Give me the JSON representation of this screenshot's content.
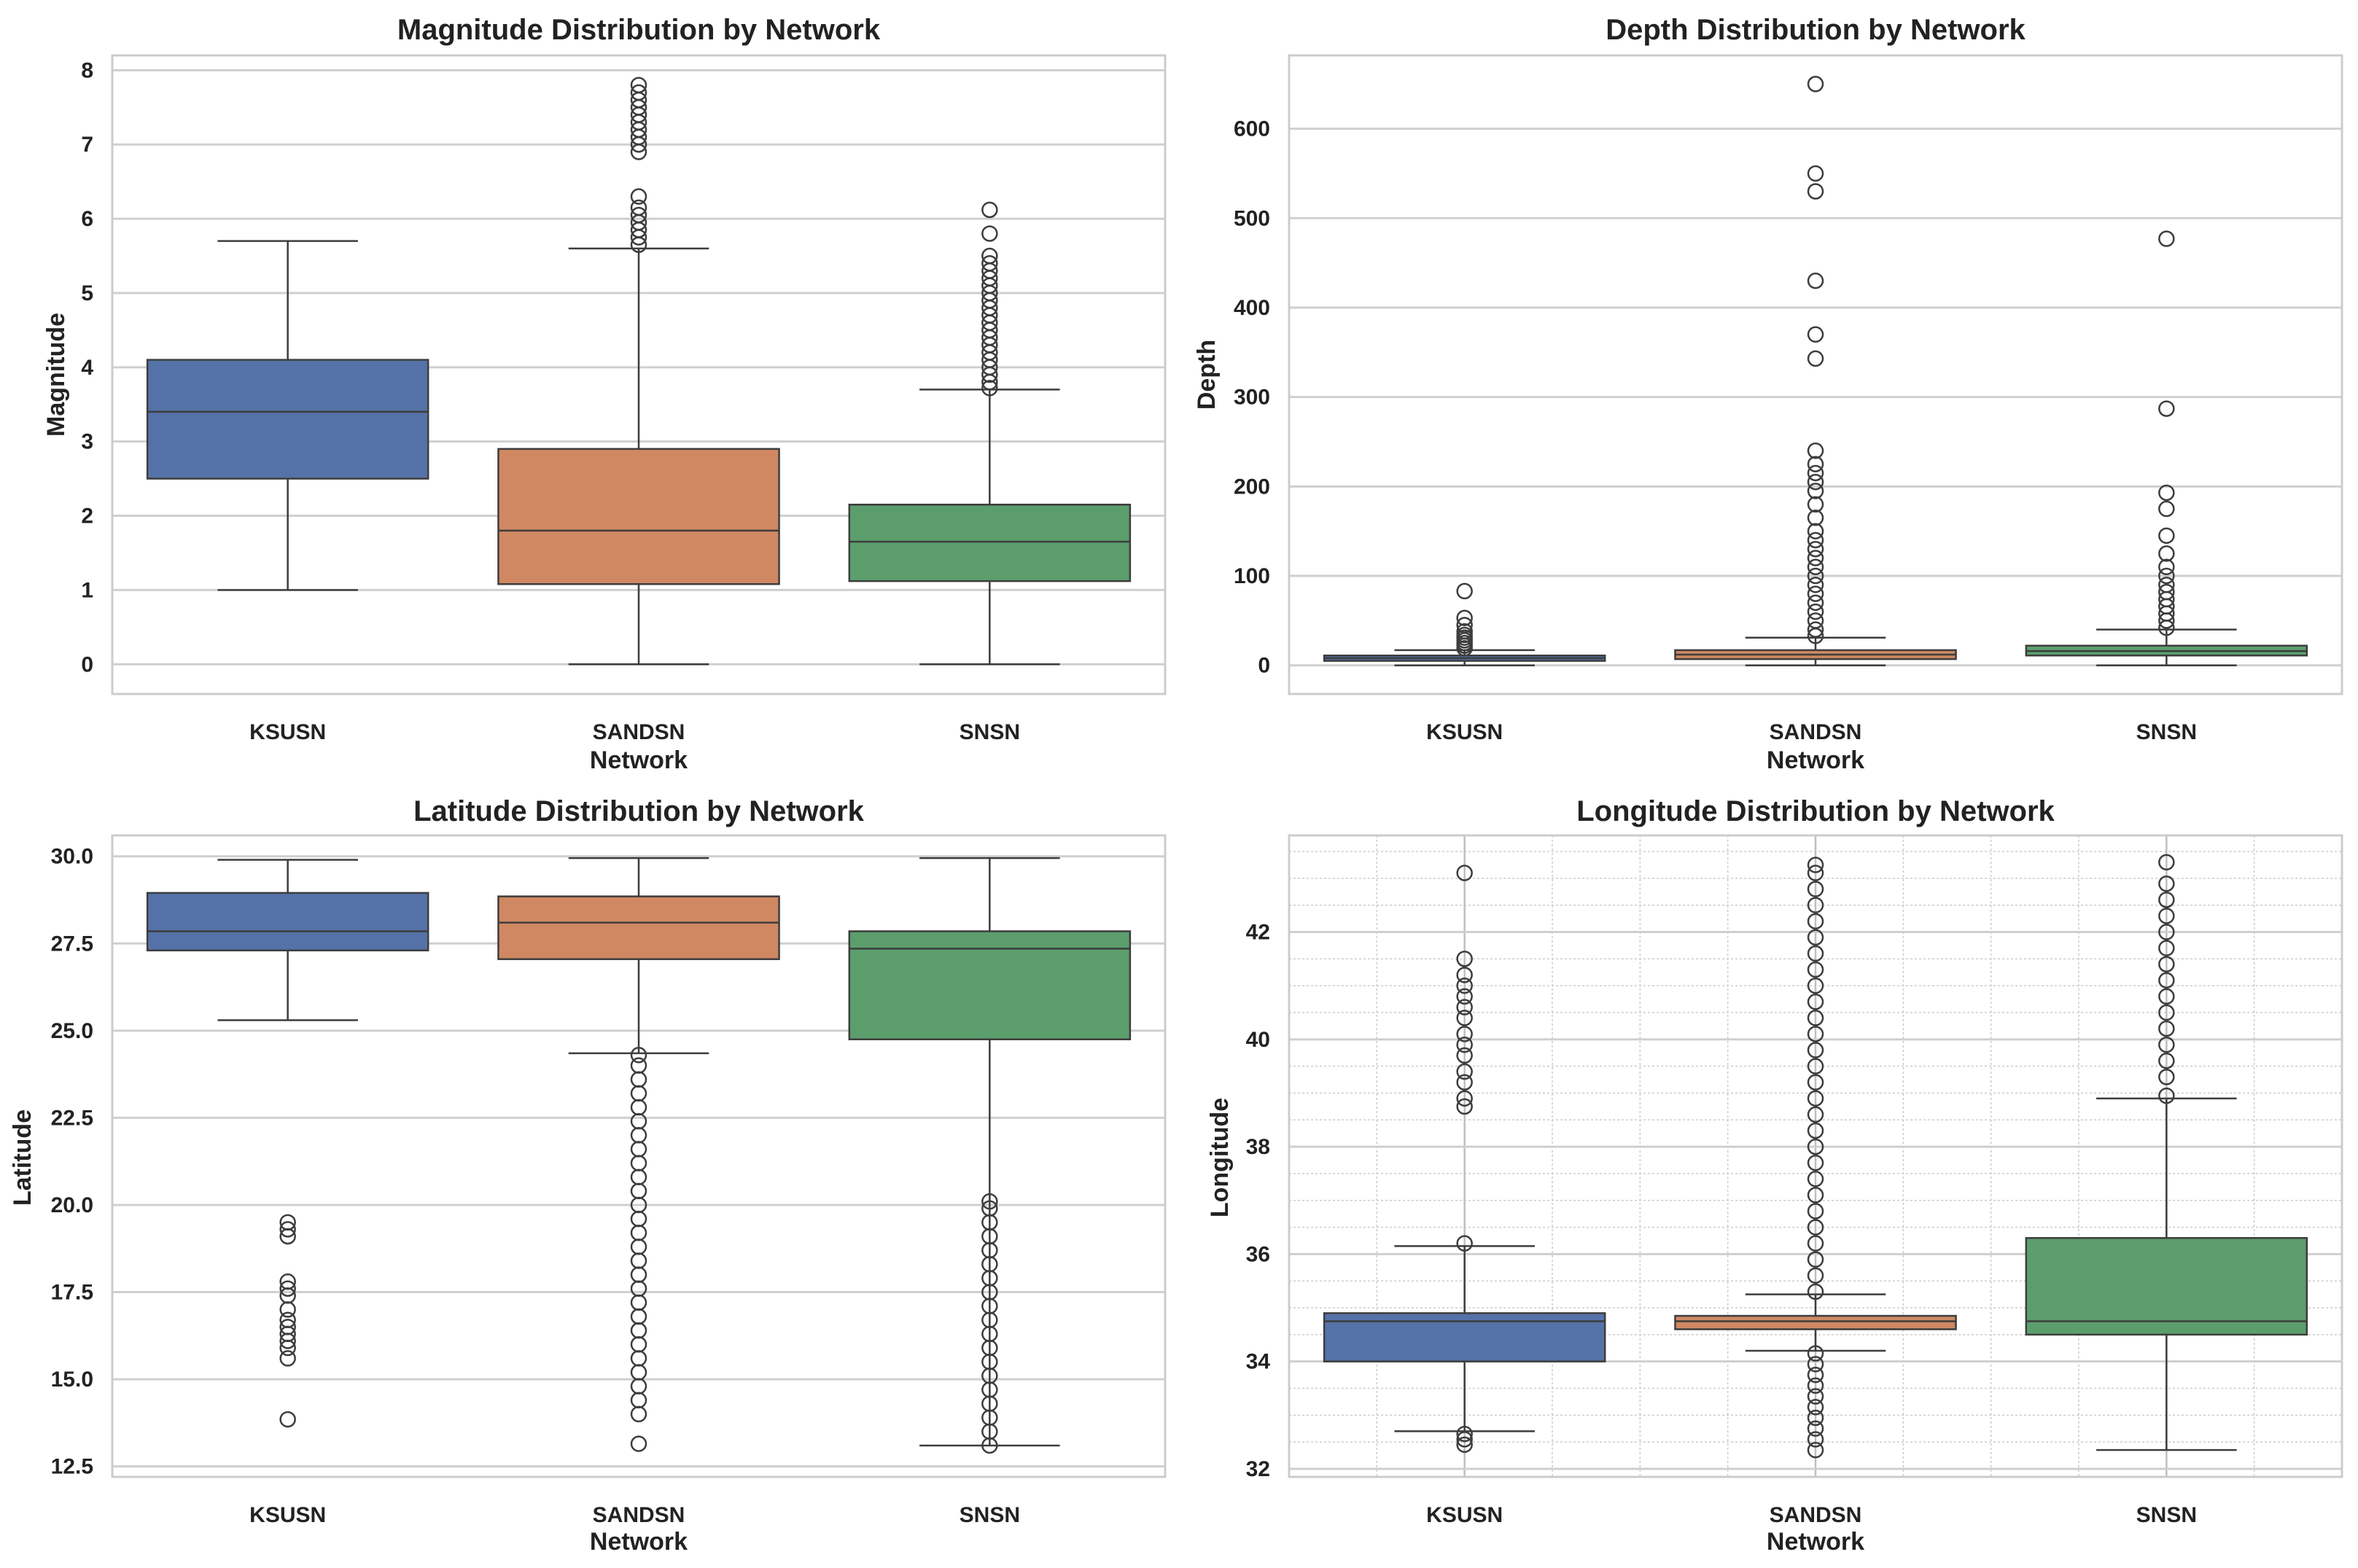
{
  "chart_data": [
    {
      "type": "box",
      "title": "Magnitude Distribution by Network",
      "xlabel": "Network",
      "ylabel": "Magnitude",
      "ylim": [
        -0.4,
        8.2
      ],
      "yticks": [
        0,
        1,
        2,
        3,
        4,
        5,
        6,
        7,
        8
      ],
      "ytick_labels": [
        "0",
        "1",
        "2",
        "3",
        "4",
        "5",
        "6",
        "7",
        "8"
      ],
      "grid": "major",
      "categories": [
        "KSUSN",
        "SANDSN",
        "SNSN"
      ],
      "colors": [
        "#5572a8",
        "#cf8862",
        "#5b9e6c"
      ],
      "boxes": [
        {
          "whislo": 1.0,
          "q1": 2.5,
          "med": 3.4,
          "q3": 4.1,
          "whishi": 5.7,
          "fliers": []
        },
        {
          "whislo": 0.0,
          "q1": 1.08,
          "med": 1.8,
          "q3": 2.9,
          "whishi": 5.6,
          "fliers": [
            5.65,
            5.75,
            5.85,
            5.95,
            6.05,
            6.15,
            6.3,
            6.9,
            7.0,
            7.1,
            7.2,
            7.3,
            7.4,
            7.5,
            7.6,
            7.7,
            7.8
          ]
        },
        {
          "whislo": 0.0,
          "q1": 1.12,
          "med": 1.65,
          "q3": 2.15,
          "whishi": 3.7,
          "fliers": [
            3.72,
            3.8,
            3.9,
            4.0,
            4.1,
            4.2,
            4.3,
            4.4,
            4.5,
            4.6,
            4.7,
            4.8,
            4.9,
            5.0,
            5.1,
            5.2,
            5.3,
            5.4,
            5.5,
            5.8,
            6.12
          ]
        }
      ]
    },
    {
      "type": "box",
      "title": "Depth Distribution by Network",
      "xlabel": "Network",
      "ylabel": "Depth",
      "ylim": [
        -32,
        682
      ],
      "yticks": [
        0,
        100,
        200,
        300,
        400,
        500,
        600
      ],
      "ytick_labels": [
        "0",
        "100",
        "200",
        "300",
        "400",
        "500",
        "600"
      ],
      "grid": "major",
      "categories": [
        "KSUSN",
        "SANDSN",
        "SNSN"
      ],
      "colors": [
        "#5572a8",
        "#cf8862",
        "#5b9e6c"
      ],
      "boxes": [
        {
          "whislo": 0,
          "q1": 5,
          "med": 8,
          "q3": 11,
          "whishi": 17,
          "fliers": [
            19,
            22,
            25,
            28,
            31,
            34,
            38,
            45,
            53,
            83
          ]
        },
        {
          "whislo": 0,
          "q1": 7,
          "med": 12,
          "q3": 17,
          "whishi": 31,
          "fliers": [
            33,
            40,
            50,
            60,
            70,
            80,
            90,
            100,
            110,
            120,
            130,
            140,
            150,
            165,
            180,
            195,
            205,
            215,
            225,
            240,
            343,
            370,
            430,
            530,
            550,
            650
          ]
        },
        {
          "whislo": 0,
          "q1": 11,
          "med": 16,
          "q3": 22,
          "whishi": 40,
          "fliers": [
            42,
            50,
            58,
            66,
            74,
            82,
            90,
            100,
            110,
            125,
            145,
            175,
            193,
            287,
            477
          ]
        }
      ]
    },
    {
      "type": "box",
      "title": "Latitude Distribution by Network",
      "xlabel": "Network",
      "ylabel": "Latitude",
      "ylim": [
        12.2,
        30.6
      ],
      "yticks": [
        12.5,
        15.0,
        17.5,
        20.0,
        22.5,
        25.0,
        27.5,
        30.0
      ],
      "ytick_labels": [
        "12.5",
        "15.0",
        "17.5",
        "20.0",
        "22.5",
        "25.0",
        "27.5",
        "30.0"
      ],
      "grid": "major",
      "categories": [
        "KSUSN",
        "SANDSN",
        "SNSN"
      ],
      "colors": [
        "#5572a8",
        "#cf8862",
        "#5b9e6c"
      ],
      "boxes": [
        {
          "whislo": 25.3,
          "q1": 27.3,
          "med": 27.85,
          "q3": 28.95,
          "whishi": 29.9,
          "fliers": [
            13.85,
            15.6,
            15.9,
            16.1,
            16.3,
            16.5,
            16.7,
            17.0,
            17.4,
            17.6,
            17.8,
            19.1,
            19.3,
            19.5
          ]
        },
        {
          "whislo": 24.35,
          "q1": 27.05,
          "med": 28.1,
          "q3": 28.85,
          "whishi": 29.95,
          "fliers": [
            13.15,
            14.0,
            14.4,
            14.8,
            15.2,
            15.6,
            16.0,
            16.4,
            16.8,
            17.2,
            17.6,
            18.0,
            18.4,
            18.8,
            19.2,
            19.6,
            20.0,
            20.4,
            20.8,
            21.2,
            21.6,
            22.0,
            22.4,
            22.8,
            23.2,
            23.6,
            24.0,
            24.3
          ]
        },
        {
          "whislo": 13.1,
          "q1": 24.75,
          "med": 27.35,
          "q3": 27.85,
          "whishi": 29.95,
          "fliers": [
            13.1,
            13.5,
            13.9,
            14.3,
            14.7,
            15.1,
            15.5,
            15.9,
            16.3,
            16.7,
            17.1,
            17.5,
            17.9,
            18.3,
            18.7,
            19.1,
            19.5,
            19.9,
            20.1
          ]
        }
      ]
    },
    {
      "type": "box",
      "title": "Longitude Distribution by Network",
      "xlabel": "Network",
      "ylabel": "Longitude",
      "ylim": [
        31.85,
        43.8
      ],
      "yticks": [
        32,
        34,
        36,
        38,
        40,
        42
      ],
      "ytick_labels": [
        "32",
        "34",
        "36",
        "38",
        "40",
        "42"
      ],
      "grid": "major+minor",
      "categories": [
        "KSUSN",
        "SANDSN",
        "SNSN"
      ],
      "colors": [
        "#5572a8",
        "#cf8862",
        "#5b9e6c"
      ],
      "boxes": [
        {
          "whislo": 32.7,
          "q1": 34.0,
          "med": 34.75,
          "q3": 34.9,
          "whishi": 36.15,
          "fliers": [
            32.45,
            32.55,
            32.65,
            36.2,
            38.75,
            38.9,
            39.2,
            39.4,
            39.7,
            39.9,
            40.1,
            40.4,
            40.6,
            40.8,
            41.0,
            41.2,
            41.5,
            43.1
          ]
        },
        {
          "whislo": 34.2,
          "q1": 34.6,
          "med": 34.75,
          "q3": 34.85,
          "whishi": 35.25,
          "fliers": [
            32.35,
            32.55,
            32.75,
            32.95,
            33.15,
            33.35,
            33.55,
            33.75,
            33.95,
            34.15,
            35.3,
            35.6,
            35.9,
            36.2,
            36.5,
            36.8,
            37.1,
            37.4,
            37.7,
            38.0,
            38.3,
            38.6,
            38.9,
            39.2,
            39.5,
            39.8,
            40.1,
            40.4,
            40.7,
            41.0,
            41.3,
            41.6,
            41.9,
            42.2,
            42.5,
            42.8,
            43.1,
            43.25
          ]
        },
        {
          "whislo": 32.35,
          "q1": 34.5,
          "med": 34.75,
          "q3": 36.3,
          "whishi": 38.9,
          "fliers": [
            38.95,
            39.3,
            39.6,
            39.9,
            40.2,
            40.5,
            40.8,
            41.1,
            41.4,
            41.7,
            42.0,
            42.3,
            42.6,
            42.9,
            43.3
          ]
        }
      ]
    }
  ]
}
